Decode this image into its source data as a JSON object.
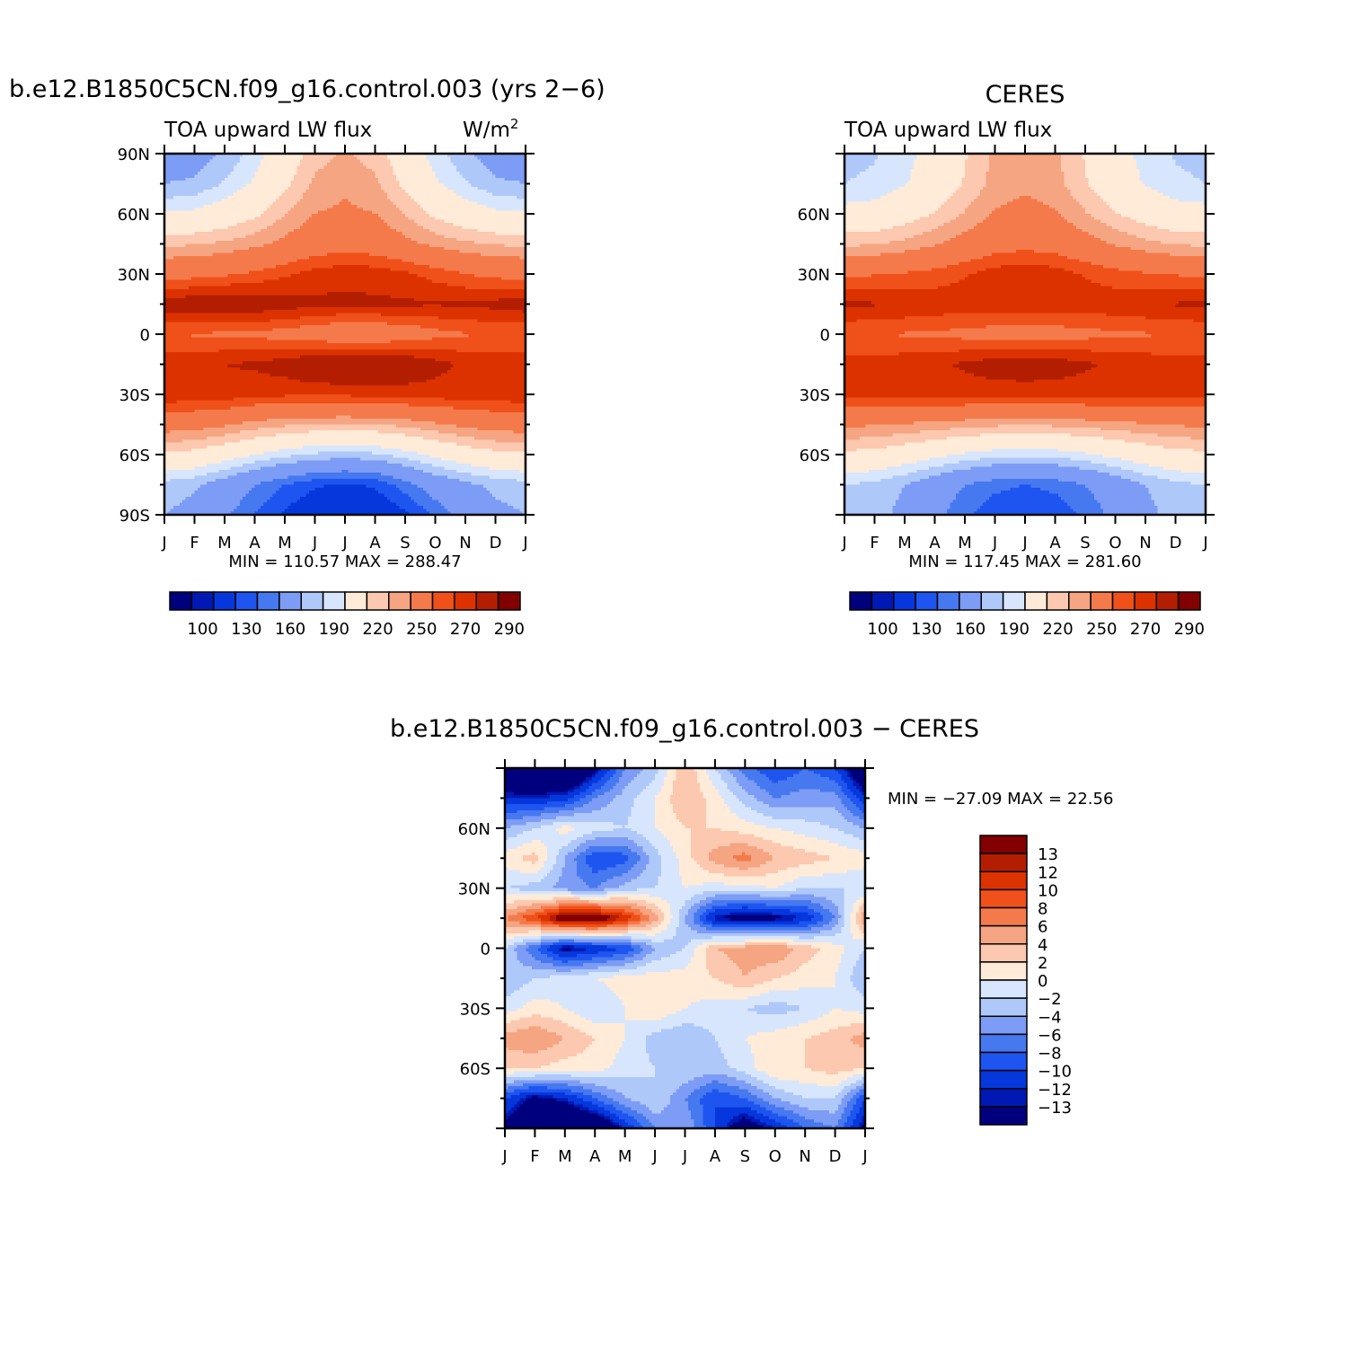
{
  "palette": {
    "lw": [
      "#00007f",
      "#0019b4",
      "#0537dc",
      "#1e55f0",
      "#4678f0",
      "#7d9cf5",
      "#afc8fa",
      "#d7e6fc",
      "#ffebd7",
      "#fcc8af",
      "#f5a582",
      "#f57a4b",
      "#f05019",
      "#dc3200",
      "#b41e00",
      "#820000"
    ],
    "diff": [
      "#00007f",
      "#0019b4",
      "#0537dc",
      "#1e55f0",
      "#4678f0",
      "#7d9cf5",
      "#afc8fa",
      "#d7e6fc",
      "#ffebd7",
      "#fcc8af",
      "#f5a582",
      "#f57a4b",
      "#f05019",
      "#dc3200",
      "#b41e00",
      "#820000"
    ]
  },
  "panel1": {
    "title": "b.e12.B1850C5CN.f09_g16.control.003 (yrs 2−6)",
    "left_string": "TOA upward LW flux",
    "units_base": "W/m",
    "units_exp": "2",
    "stats": "MIN =  110.57  MAX =  288.47",
    "ytick_labels": [
      "90N",
      "60N",
      "30N",
      "0",
      "30S",
      "60S",
      "90S"
    ],
    "xtick_labels": [
      "J",
      "F",
      "M",
      "A",
      "M",
      "J",
      "J",
      "A",
      "S",
      "O",
      "N",
      "D",
      "J"
    ],
    "colorbar_labels": [
      "100",
      "130",
      "160",
      "190",
      "220",
      "250",
      "270",
      "290"
    ]
  },
  "panel2": {
    "title": "CERES",
    "left_string": "TOA upward LW flux",
    "stats": "MIN =  117.45  MAX =  281.60",
    "ytick_labels": [
      "60N",
      "30N",
      "0",
      "30S",
      "60S"
    ],
    "xtick_labels": [
      "J",
      "F",
      "M",
      "A",
      "M",
      "J",
      "J",
      "A",
      "S",
      "O",
      "N",
      "D",
      "J"
    ],
    "colorbar_labels": [
      "100",
      "130",
      "160",
      "190",
      "220",
      "250",
      "270",
      "290"
    ]
  },
  "panel3": {
    "title": "b.e12.B1850C5CN.f09_g16.control.003  −  CERES",
    "stats": "MIN =  −27.09  MAX =    22.56",
    "ytick_labels": [
      "60N",
      "30N",
      "0",
      "30S",
      "60S"
    ],
    "xtick_labels": [
      "J",
      "F",
      "M",
      "A",
      "M",
      "J",
      "J",
      "A",
      "S",
      "O",
      "N",
      "D",
      "J"
    ],
    "colorbar_labels": [
      "13",
      "12",
      "10",
      "8",
      "6",
      "4",
      "2",
      "0",
      "−2",
      "−4",
      "−6",
      "−8",
      "−10",
      "−12",
      "−13"
    ]
  },
  "chart_data": [
    {
      "type": "heatmap",
      "title": "b.e12.B1850C5CN.f09_g16.control.003 (yrs 2−6)",
      "subtitle": "TOA upward LW flux",
      "units": "W/m2",
      "x": [
        "J",
        "F",
        "M",
        "A",
        "M",
        "J",
        "J",
        "A",
        "S",
        "O",
        "N",
        "D",
        "J"
      ],
      "y": [
        90,
        75,
        60,
        45,
        30,
        15,
        0,
        -15,
        -30,
        -45,
        -60,
        -75,
        -90
      ],
      "levels": [
        100,
        110,
        120,
        130,
        140,
        150,
        160,
        170,
        180,
        190,
        200,
        210,
        220,
        230,
        240,
        250,
        260,
        270,
        280,
        290
      ],
      "z": [
        [
          161,
          163,
          172,
          185,
          200,
          216,
          221,
          216,
          200,
          185,
          172,
          163,
          161
        ],
        [
          170,
          172,
          181,
          192,
          207,
          222,
          227,
          222,
          207,
          192,
          181,
          172,
          170
        ],
        [
          191,
          193,
          199,
          207,
          219,
          230,
          233,
          230,
          219,
          207,
          199,
          193,
          191
        ],
        [
          218,
          219,
          222,
          227,
          234,
          241,
          243,
          241,
          234,
          227,
          222,
          219,
          218
        ],
        [
          244,
          245,
          248,
          252,
          258,
          264,
          267,
          266,
          262,
          256,
          250,
          246,
          244
        ],
        [
          277,
          279,
          281,
          279,
          276,
          273,
          272,
          272,
          272,
          271,
          272,
          274,
          277
        ],
        [
          250,
          249,
          248,
          247,
          244,
          240,
          236,
          237,
          240,
          246,
          249,
          250,
          250
        ],
        [
          266,
          268,
          270,
          272,
          276,
          283,
          287,
          287,
          282,
          274,
          268,
          266,
          266
        ],
        [
          268,
          267,
          266,
          263,
          262,
          262,
          262,
          263,
          264,
          265,
          266,
          267,
          268
        ],
        [
          238,
          236,
          232,
          226,
          222,
          220,
          219,
          220,
          223,
          228,
          233,
          237,
          238
        ],
        [
          208,
          205,
          198,
          190,
          183,
          178,
          176,
          178,
          185,
          194,
          201,
          206,
          208
        ],
        [
          176,
          172,
          162,
          150,
          140,
          132,
          128,
          132,
          145,
          158,
          167,
          173,
          176
        ],
        [
          170,
          165,
          152,
          140,
          128,
          118,
          114,
          117,
          128,
          142,
          156,
          166,
          170
        ]
      ]
    },
    {
      "type": "heatmap",
      "title": "CERES",
      "subtitle": "TOA upward LW flux",
      "x": [
        "J",
        "F",
        "M",
        "A",
        "M",
        "J",
        "J",
        "A",
        "S",
        "O",
        "N",
        "D",
        "J"
      ],
      "y": [
        90,
        75,
        60,
        45,
        30,
        15,
        0,
        -15,
        -30,
        -45,
        -60,
        -75,
        -90
      ],
      "levels": [
        100,
        110,
        120,
        130,
        140,
        150,
        160,
        170,
        180,
        190,
        200,
        210,
        220,
        230,
        240,
        250,
        260,
        270,
        280,
        290
      ],
      "z": [
        [
          177,
          179,
          186,
          196,
          209,
          222,
          226,
          222,
          209,
          196,
          186,
          179,
          177
        ],
        [
          180,
          182,
          189,
          198,
          211,
          224,
          228,
          224,
          211,
          198,
          189,
          182,
          180
        ],
        [
          195,
          197,
          203,
          211,
          221,
          231,
          234,
          231,
          221,
          211,
          203,
          197,
          195
        ],
        [
          218,
          219,
          223,
          229,
          236,
          243,
          245,
          243,
          236,
          229,
          223,
          219,
          218
        ],
        [
          248,
          249,
          251,
          254,
          259,
          265,
          268,
          265,
          259,
          254,
          251,
          249,
          248
        ],
        [
          273,
          271,
          269,
          267,
          266,
          266,
          266,
          266,
          266,
          267,
          269,
          271,
          273
        ],
        [
          250,
          250,
          249,
          248,
          246,
          244,
          243,
          244,
          246,
          248,
          249,
          250,
          250
        ],
        [
          264,
          265,
          266,
          268,
          272,
          276,
          278,
          276,
          272,
          268,
          266,
          265,
          264
        ],
        [
          264,
          264,
          264,
          264,
          264,
          264,
          264,
          264,
          264,
          264,
          264,
          264,
          264
        ],
        [
          232,
          231,
          229,
          226,
          224,
          222,
          221,
          222,
          224,
          226,
          229,
          231,
          232
        ],
        [
          207,
          205,
          200,
          194,
          188,
          184,
          183,
          184,
          188,
          194,
          200,
          205,
          207
        ],
        [
          180,
          177,
          170,
          160,
          150,
          143,
          140,
          143,
          150,
          160,
          170,
          177,
          180
        ],
        [
          178,
          175,
          166,
          154,
          142,
          133,
          130,
          133,
          142,
          154,
          166,
          175,
          178
        ]
      ]
    },
    {
      "type": "heatmap",
      "title": "b.e12.B1850C5CN.f09_g16.control.003 − CERES",
      "x": [
        "J",
        "F",
        "M",
        "A",
        "M",
        "J",
        "J",
        "A",
        "S",
        "O",
        "N",
        "D",
        "J"
      ],
      "y": [
        90,
        75,
        60,
        45,
        30,
        15,
        0,
        -15,
        -30,
        -45,
        -60,
        -75,
        -90
      ],
      "levels": [
        -13,
        -12,
        -10,
        -8,
        -6,
        -4,
        -2,
        0,
        2,
        4,
        6,
        8,
        10,
        12,
        13
      ],
      "z": [
        [
          -18,
          -20,
          -22,
          -14,
          -6,
          -3,
          4,
          -2,
          -7,
          -10,
          -8,
          -10,
          -18
        ],
        [
          -12,
          -12,
          -11,
          -6,
          -3,
          0,
          4,
          1,
          -3,
          -6,
          -5,
          -5,
          -12
        ],
        [
          -4,
          -2,
          1,
          -1,
          -2,
          0,
          2,
          2,
          1,
          0,
          -1,
          -2,
          -4
        ],
        [
          1,
          3,
          -4,
          -10,
          -9,
          -3,
          1,
          5,
          7,
          4,
          3,
          2,
          1
        ],
        [
          -2,
          -3,
          -5,
          -6,
          -3,
          -2,
          0,
          -1,
          -1,
          0,
          -2,
          -2,
          -2
        ],
        [
          6,
          10,
          16,
          16,
          12,
          5,
          -4,
          -13,
          -15,
          -14,
          -12,
          -6,
          6
        ],
        [
          -2,
          -8,
          -14,
          -12,
          -10,
          -4,
          -2,
          4,
          5,
          6,
          3,
          1,
          -2
        ],
        [
          -4,
          -2,
          -1,
          0,
          1,
          1,
          1,
          2,
          4,
          2,
          1,
          0,
          -4
        ],
        [
          -1,
          1,
          0,
          -2,
          0,
          2,
          0,
          -1,
          -2,
          -3,
          -2,
          0,
          -1
        ],
        [
          5,
          6,
          4,
          2,
          0,
          -3,
          -4,
          -2,
          0,
          1,
          2,
          3,
          5
        ],
        [
          2,
          2,
          1,
          1,
          -1,
          -2,
          -2,
          -3,
          -1,
          2,
          2,
          3,
          2
        ],
        [
          -10,
          -14,
          -12,
          -8,
          -4,
          -2,
          -6,
          -10,
          -8,
          -4,
          -2,
          -2,
          -10
        ],
        [
          -14,
          -18,
          -20,
          -18,
          -12,
          -6,
          -4,
          -10,
          -16,
          -12,
          -8,
          -6,
          -14
        ]
      ]
    }
  ]
}
